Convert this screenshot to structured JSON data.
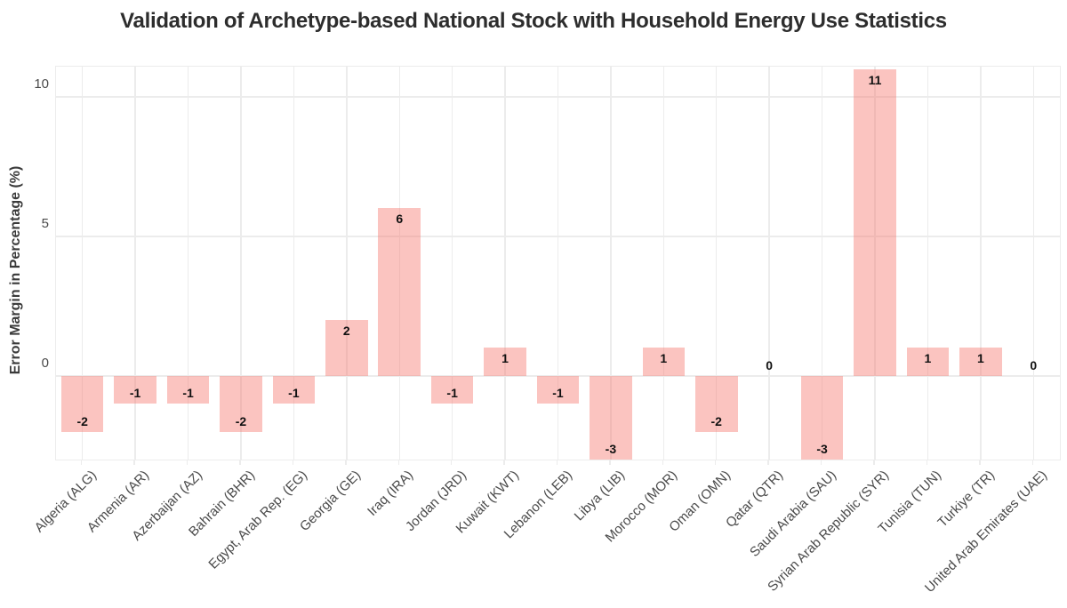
{
  "chart_data": {
    "type": "bar",
    "title": "Validation of Archetype-based National Stock with Household Energy Use Statistics",
    "xlabel": "",
    "ylabel": "Error Margin in Percentage (%)",
    "categories": [
      "Algeria (ALG)",
      "Armenia (AR)",
      "Azerbaijan (AZ)",
      "Bahrain (BHR)",
      "Egypt, Arab Rep. (EG)",
      "Georgia (GE)",
      "Iraq (IRA)",
      "Jordan (JRD)",
      "Kuwait (KWT)",
      "Lebanon (LEB)",
      "Libya (LIB)",
      "Morocco (MOR)",
      "Oman (OMN)",
      "Qatar (QTR)",
      "Saudi Arabia (SAU)",
      "Syrian Arab Republic (SYR)",
      "Tunisia (TUN)",
      "Turkiye (TR)",
      "United Arab Emirates (UAE)"
    ],
    "values": [
      -2,
      -1,
      -1,
      -2,
      -1,
      2,
      6,
      -1,
      1,
      -1,
      -3,
      1,
      -2,
      0,
      -3,
      11,
      1,
      1,
      0
    ],
    "yticks": [
      0,
      5,
      10
    ],
    "ylim": [
      -3,
      11.08
    ],
    "grid": true,
    "legend": "none",
    "bar_fill_rgba": "rgba(246, 124, 115, 0.45)",
    "gridline_color": "#ececec",
    "value_label_color": "#111111",
    "bar_width_fraction": 0.8
  }
}
